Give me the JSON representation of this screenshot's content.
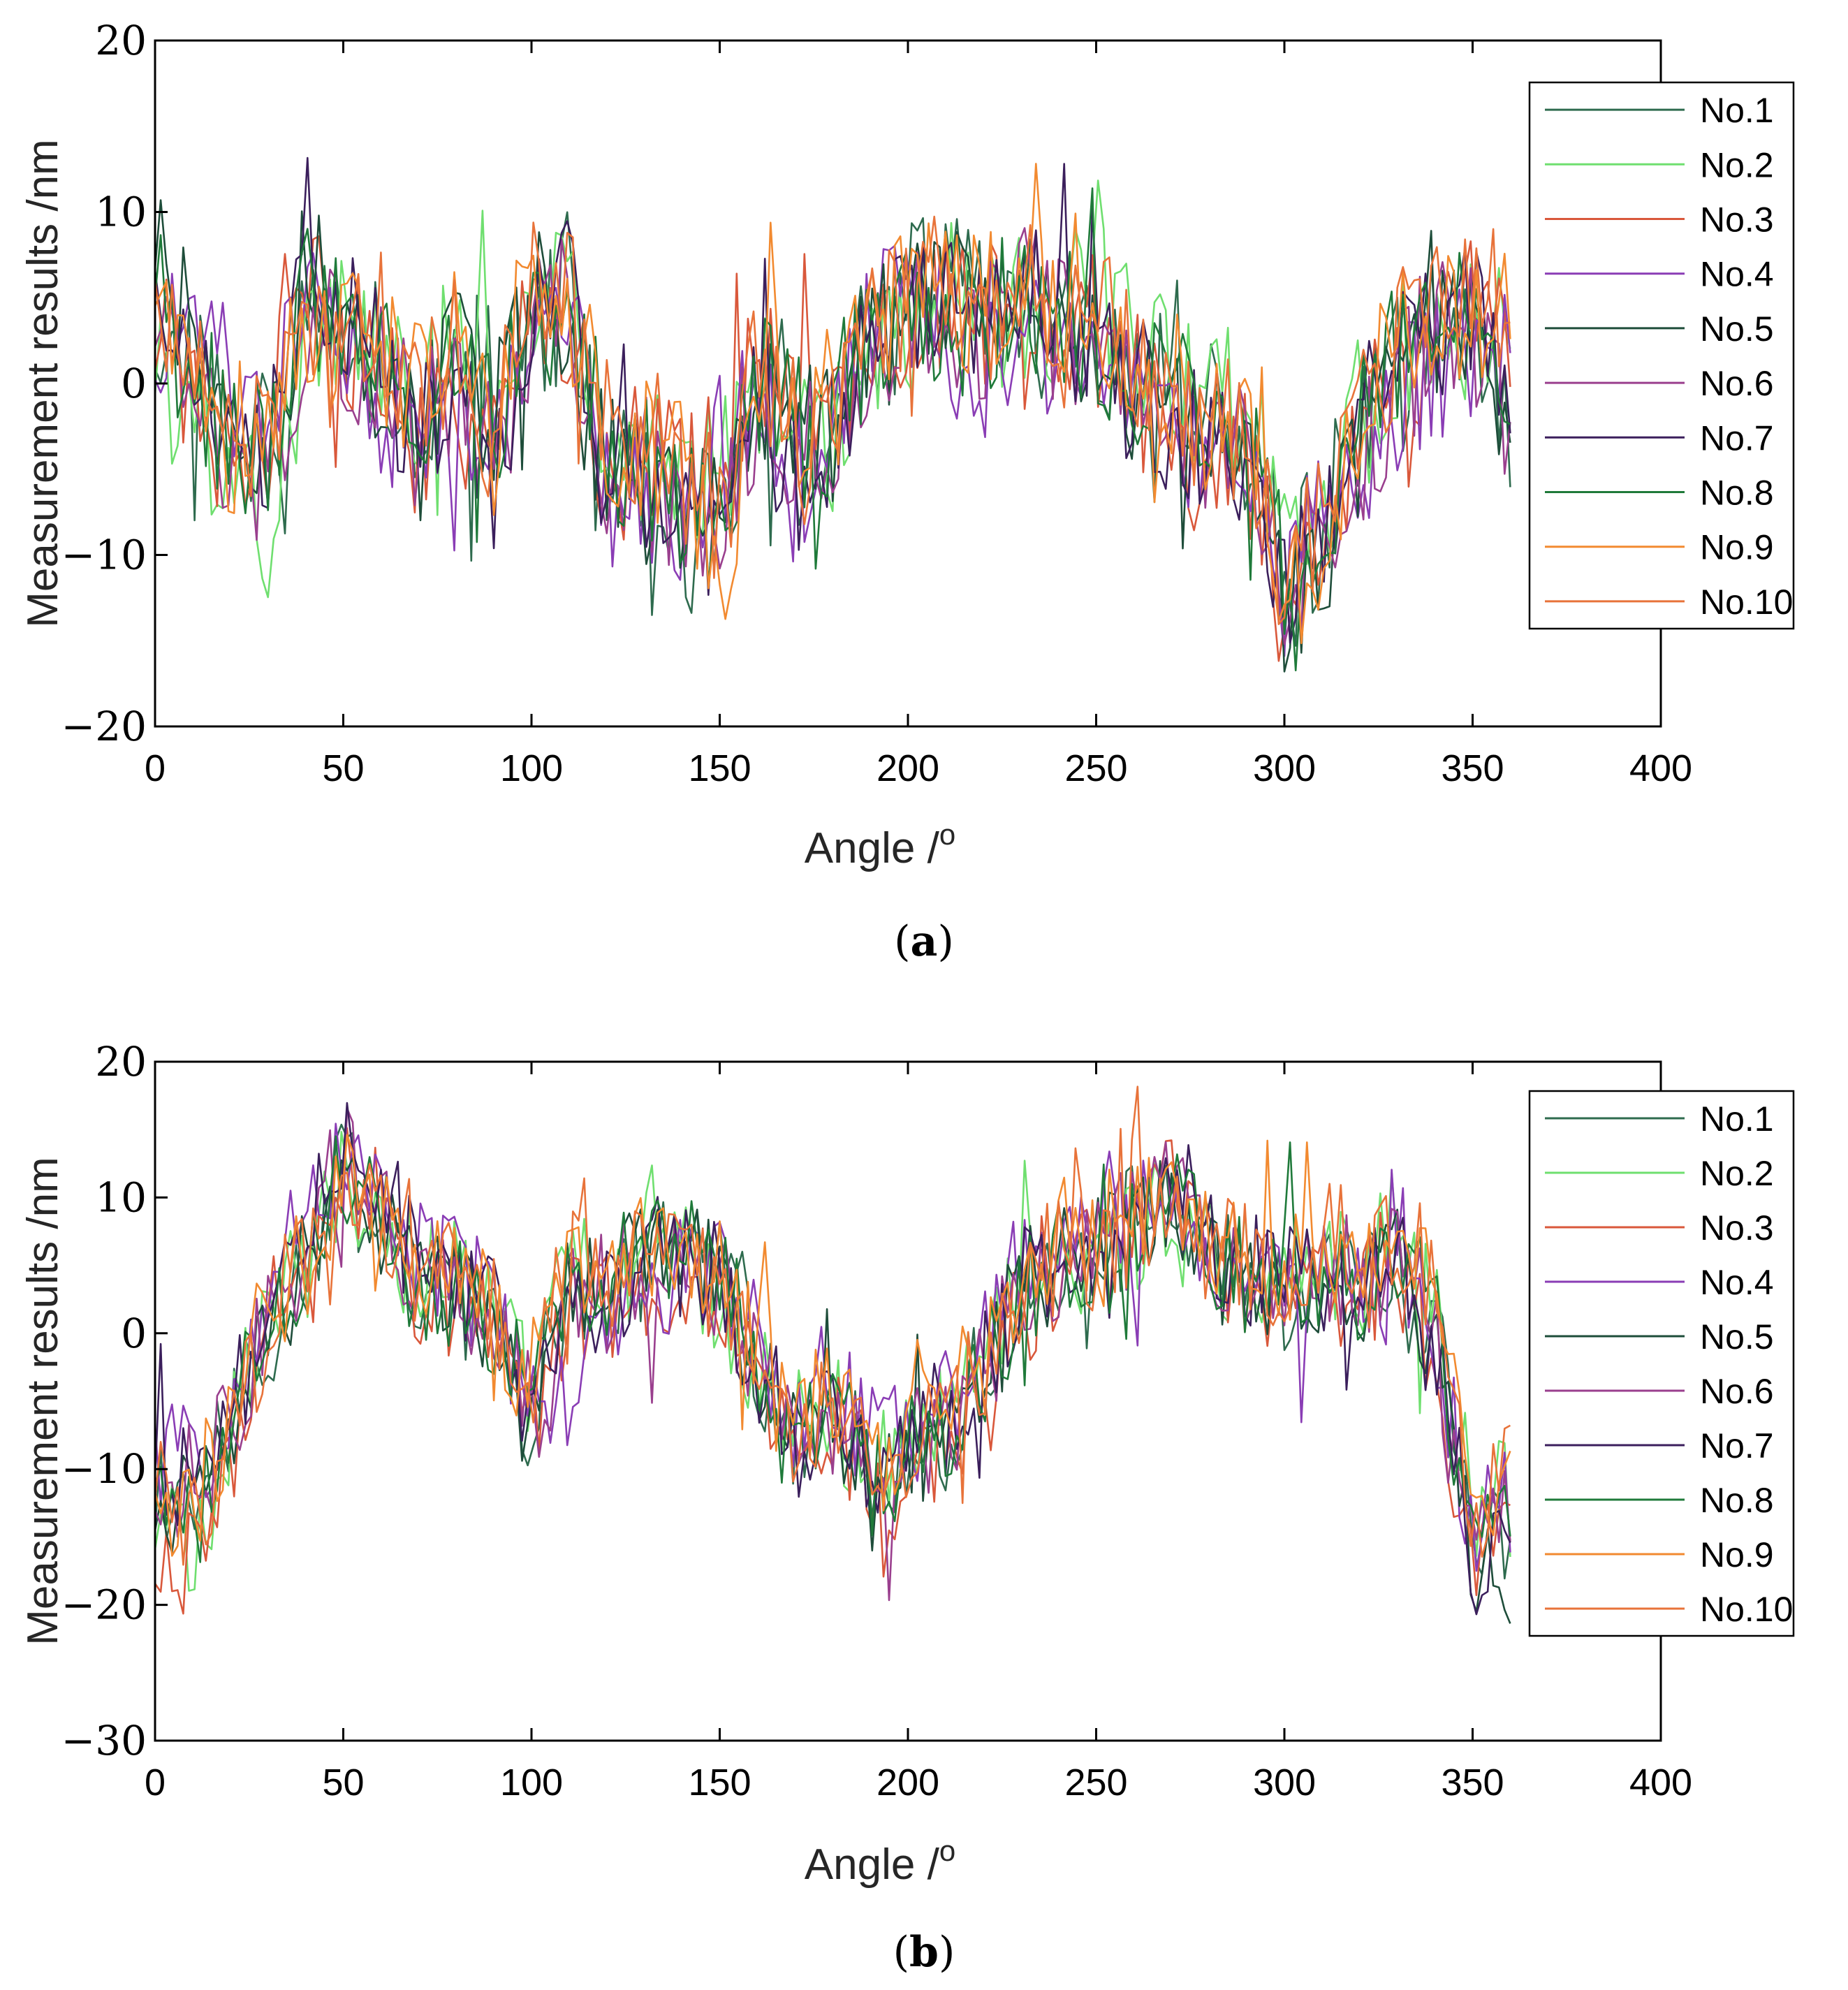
{
  "figure": {
    "caption_a": {
      "open": "(",
      "letter": "a",
      "close": ")"
    },
    "caption_b": {
      "open": "(",
      "letter": "b",
      "close": ")"
    }
  },
  "chart_data": [
    {
      "id": "a",
      "type": "line",
      "title": "",
      "xlabel": "Angle /",
      "xlabel_sup": "o",
      "ylabel": "Measurement results /nm",
      "xlim": [
        0,
        400
      ],
      "ylim": [
        -20,
        20
      ],
      "xticks": [
        0,
        50,
        100,
        150,
        200,
        250,
        300,
        350,
        400
      ],
      "xtick_labels": [
        "0",
        "50",
        "100",
        "150",
        "200",
        "250",
        "300",
        "350",
        "400"
      ],
      "yticks": [
        -20,
        -10,
        0,
        10,
        20
      ],
      "ytick_labels": [
        "−20",
        "−10",
        "0",
        "10",
        "20"
      ],
      "grid": false,
      "legend_position": "top-right",
      "x": [
        0,
        10,
        20,
        30,
        40,
        50,
        60,
        70,
        80,
        90,
        100,
        110,
        120,
        130,
        140,
        150,
        160,
        170,
        180,
        190,
        200,
        210,
        220,
        230,
        240,
        250,
        260,
        270,
        280,
        290,
        300,
        310,
        320,
        330,
        340,
        350,
        360
      ],
      "series": [
        {
          "name": "No.1",
          "color": "#2e6b4e",
          "values": [
            4,
            1,
            -2,
            -4,
            3,
            4,
            1,
            -2,
            1,
            0,
            3,
            5,
            -5,
            -5,
            -7,
            -8,
            -2,
            -4,
            -2,
            1,
            5,
            6,
            4,
            5,
            4,
            3,
            1,
            -1,
            -2,
            -3,
            -12,
            -8,
            -3,
            1,
            3,
            4,
            -3
          ]
        },
        {
          "name": "No.2",
          "color": "#6fdf6f",
          "values": [
            2,
            -3,
            -5,
            -9,
            1,
            5,
            2,
            -1,
            3,
            1,
            5,
            7,
            -3,
            -4,
            -5,
            -5,
            0,
            -3,
            -3,
            3,
            3,
            7,
            3,
            5,
            2,
            5,
            2,
            1,
            -1,
            -1,
            -9,
            -7,
            -1,
            2,
            4,
            3,
            1
          ]
        },
        {
          "name": "No.3",
          "color": "#d9583b",
          "values": [
            3,
            -1,
            -4,
            -2,
            5,
            3,
            1,
            -4,
            0,
            -5,
            4,
            4,
            -6,
            -3,
            -6,
            -5,
            1,
            -1,
            -1,
            2,
            3,
            5,
            4,
            6,
            4,
            3,
            0,
            -3,
            -5,
            -4,
            -14,
            -10,
            -2,
            1,
            2,
            5,
            2
          ]
        },
        {
          "name": "No.4",
          "color": "#8a3db5",
          "values": [
            2,
            3,
            0,
            -3,
            4,
            2,
            -1,
            -3,
            1,
            -6,
            3,
            6,
            -7,
            -7,
            -8,
            -4,
            -1,
            -6,
            -2,
            3,
            6,
            3,
            1,
            4,
            2,
            4,
            -2,
            -2,
            -4,
            -5,
            -12,
            -8,
            -5,
            -1,
            1,
            2,
            4
          ]
        },
        {
          "name": "No.5",
          "color": "#1e4d3a",
          "values": [
            8,
            2,
            -3,
            -5,
            7,
            3,
            -1,
            -4,
            2,
            -3,
            5,
            4,
            -5,
            -6,
            -7,
            -9,
            -1,
            -4,
            -3,
            2,
            4,
            5,
            3,
            5,
            3,
            2,
            -1,
            -2,
            -3,
            -3,
            -13,
            -11,
            -3,
            2,
            5,
            3,
            -2
          ]
        },
        {
          "name": "No.6",
          "color": "#9a3f8e",
          "values": [
            3,
            -2,
            -4,
            -6,
            4,
            3,
            0,
            -3,
            1,
            -5,
            4,
            5,
            -6,
            -5,
            -7,
            -7,
            -1,
            -5,
            -3,
            2,
            4,
            4,
            2,
            6,
            3,
            3,
            -1,
            -2,
            -4,
            -4,
            -11,
            -9,
            -4,
            0,
            3,
            3,
            1
          ]
        },
        {
          "name": "No.7",
          "color": "#3b1f5c",
          "values": [
            7,
            -1,
            -3,
            -4,
            9,
            4,
            0,
            -3,
            1,
            -7,
            5,
            6,
            -6,
            -6,
            -6,
            -9,
            -1,
            -6,
            -3,
            4,
            5,
            6,
            3,
            7,
            3,
            2,
            -2,
            -3,
            -4,
            -5,
            -11,
            -10,
            -3,
            1,
            3,
            4,
            -3
          ]
        },
        {
          "name": "No.8",
          "color": "#1f7a3a",
          "values": [
            5,
            0,
            -3,
            -4,
            6,
            3,
            1,
            -2,
            2,
            -2,
            4,
            4,
            -4,
            -5,
            -6,
            -8,
            0,
            -3,
            -2,
            3,
            4,
            4,
            3,
            5,
            4,
            3,
            0,
            -1,
            -2,
            -2,
            -12,
            -9,
            -2,
            2,
            4,
            4,
            -4
          ]
        },
        {
          "name": "No.9",
          "color": "#f28a30",
          "values": [
            4,
            1,
            -2,
            -2,
            3,
            2,
            2,
            -1,
            4,
            -4,
            6,
            5,
            -3,
            -4,
            -5,
            -14,
            1,
            -2,
            -1,
            4,
            5,
            5,
            4,
            6,
            5,
            4,
            2,
            0,
            -3,
            -2,
            -13,
            -9,
            -1,
            2,
            3,
            5,
            3
          ]
        },
        {
          "name": "No.10",
          "color": "#e8733a",
          "values": [
            5,
            2,
            -1,
            -3,
            4,
            3,
            1,
            -2,
            3,
            -3,
            7,
            5,
            -4,
            -3,
            -5,
            -8,
            1,
            -3,
            -2,
            3,
            5,
            4,
            3,
            6,
            4,
            4,
            1,
            -1,
            -3,
            -3,
            -12,
            -8,
            -2,
            2,
            4,
            6,
            1
          ]
        }
      ]
    },
    {
      "id": "b",
      "type": "line",
      "title": "",
      "xlabel": "Angle /",
      "xlabel_sup": "o",
      "ylabel": "Measurement results  /nm",
      "xlim": [
        0,
        400
      ],
      "ylim": [
        -30,
        20
      ],
      "xticks": [
        0,
        50,
        100,
        150,
        200,
        250,
        300,
        350,
        400
      ],
      "xtick_labels": [
        "0",
        "50",
        "100",
        "150",
        "200",
        "250",
        "300",
        "350",
        "400"
      ],
      "yticks": [
        -30,
        -20,
        -10,
        0,
        10,
        20
      ],
      "ytick_labels": [
        "−30",
        "−20",
        "−10",
        "0",
        "10",
        "20"
      ],
      "grid": false,
      "legend_position": "top-right",
      "x": [
        0,
        10,
        20,
        30,
        40,
        50,
        60,
        70,
        80,
        90,
        100,
        110,
        120,
        130,
        140,
        150,
        160,
        170,
        180,
        190,
        200,
        210,
        220,
        230,
        240,
        250,
        260,
        270,
        280,
        290,
        300,
        310,
        320,
        330,
        340,
        350,
        360
      ],
      "series": [
        {
          "name": "No.1",
          "color": "#2e6b4e",
          "values": [
            -10,
            -13,
            -7,
            0,
            4,
            12,
            8,
            4,
            3,
            1,
            -6,
            4,
            3,
            5,
            6,
            4,
            -2,
            -8,
            -5,
            -10,
            -9,
            -7,
            -3,
            3,
            5,
            6,
            8,
            10,
            6,
            4,
            3,
            4,
            3,
            6,
            0,
            -15,
            -16
          ]
        },
        {
          "name": "No.2",
          "color": "#6fdf6f",
          "values": [
            -12,
            -15,
            -8,
            2,
            5,
            11,
            7,
            5,
            4,
            2,
            -4,
            5,
            4,
            6,
            5,
            3,
            -3,
            -7,
            -6,
            -9,
            -8,
            -6,
            -2,
            4,
            6,
            5,
            7,
            9,
            5,
            5,
            4,
            5,
            4,
            8,
            1,
            -13,
            -12
          ]
        },
        {
          "name": "No.3",
          "color": "#d9583b",
          "values": [
            -15,
            -18,
            -9,
            1,
            3,
            13,
            9,
            3,
            2,
            0,
            -8,
            3,
            2,
            4,
            4,
            3,
            -5,
            -9,
            -7,
            -11,
            -13,
            -8,
            -6,
            2,
            4,
            5,
            7,
            12,
            7,
            3,
            2,
            3,
            2,
            5,
            -2,
            -18,
            -14
          ]
        },
        {
          "name": "No.4",
          "color": "#8a3db5",
          "values": [
            -8,
            -10,
            -5,
            3,
            9,
            14,
            10,
            6,
            4,
            2,
            -4,
            -6,
            0,
            3,
            4,
            5,
            -1,
            -6,
            -3,
            -8,
            -7,
            -5,
            -1,
            5,
            6,
            7,
            8,
            11,
            6,
            6,
            5,
            4,
            2,
            4,
            -1,
            -14,
            -12
          ]
        },
        {
          "name": "No.5",
          "color": "#1e4d3a",
          "values": [
            -12,
            -14,
            -8,
            0,
            5,
            12,
            7,
            4,
            2,
            0,
            -7,
            4,
            5,
            7,
            6,
            4,
            -2,
            -9,
            -6,
            -12,
            -10,
            -8,
            -4,
            3,
            5,
            6,
            8,
            10,
            5,
            4,
            3,
            3,
            3,
            6,
            0,
            -16,
            -18
          ]
        },
        {
          "name": "No.6",
          "color": "#9a3f8e",
          "values": [
            -11,
            -13,
            -6,
            1,
            6,
            13,
            9,
            5,
            3,
            1,
            -7,
            3,
            3,
            5,
            5,
            4,
            -3,
            -8,
            -5,
            -10,
            -9,
            -7,
            -3,
            4,
            5,
            6,
            8,
            11,
            6,
            4,
            4,
            4,
            3,
            5,
            0,
            -15,
            -14
          ]
        },
        {
          "name": "No.7",
          "color": "#3b1f5c",
          "values": [
            -9,
            -12,
            -6,
            1,
            7,
            15,
            11,
            5,
            3,
            1,
            -6,
            4,
            2,
            5,
            5,
            4,
            -2,
            -8,
            -4,
            -10,
            -8,
            -6,
            -2,
            4,
            6,
            6,
            9,
            12,
            7,
            5,
            4,
            4,
            3,
            5,
            0,
            -17,
            -13
          ]
        },
        {
          "name": "No.8",
          "color": "#1f7a3a",
          "values": [
            -10,
            -14,
            -7,
            0,
            5,
            12,
            8,
            4,
            3,
            1,
            -6,
            5,
            4,
            6,
            7,
            4,
            -2,
            -9,
            -5,
            -11,
            -9,
            -7,
            -3,
            3,
            6,
            5,
            8,
            10,
            6,
            4,
            3,
            4,
            3,
            7,
            1,
            -15,
            -15
          ]
        },
        {
          "name": "No.9",
          "color": "#f28a30",
          "values": [
            -11,
            -13,
            -6,
            2,
            5,
            12,
            10,
            6,
            5,
            2,
            -5,
            6,
            4,
            6,
            6,
            5,
            -2,
            -7,
            -4,
            -9,
            -8,
            -5,
            -2,
            5,
            7,
            7,
            9,
            11,
            7,
            6,
            5,
            6,
            4,
            7,
            2,
            -12,
            -10
          ]
        },
        {
          "name": "No.10",
          "color": "#e8733a",
          "values": [
            -12,
            -14,
            -7,
            1,
            5,
            12,
            9,
            5,
            4,
            2,
            -5,
            5,
            3,
            6,
            6,
            4,
            -3,
            -8,
            -5,
            -9,
            -8,
            -6,
            -3,
            4,
            6,
            6,
            8,
            10,
            6,
            5,
            4,
            5,
            3,
            7,
            2,
            -13,
            -11
          ]
        }
      ]
    }
  ]
}
